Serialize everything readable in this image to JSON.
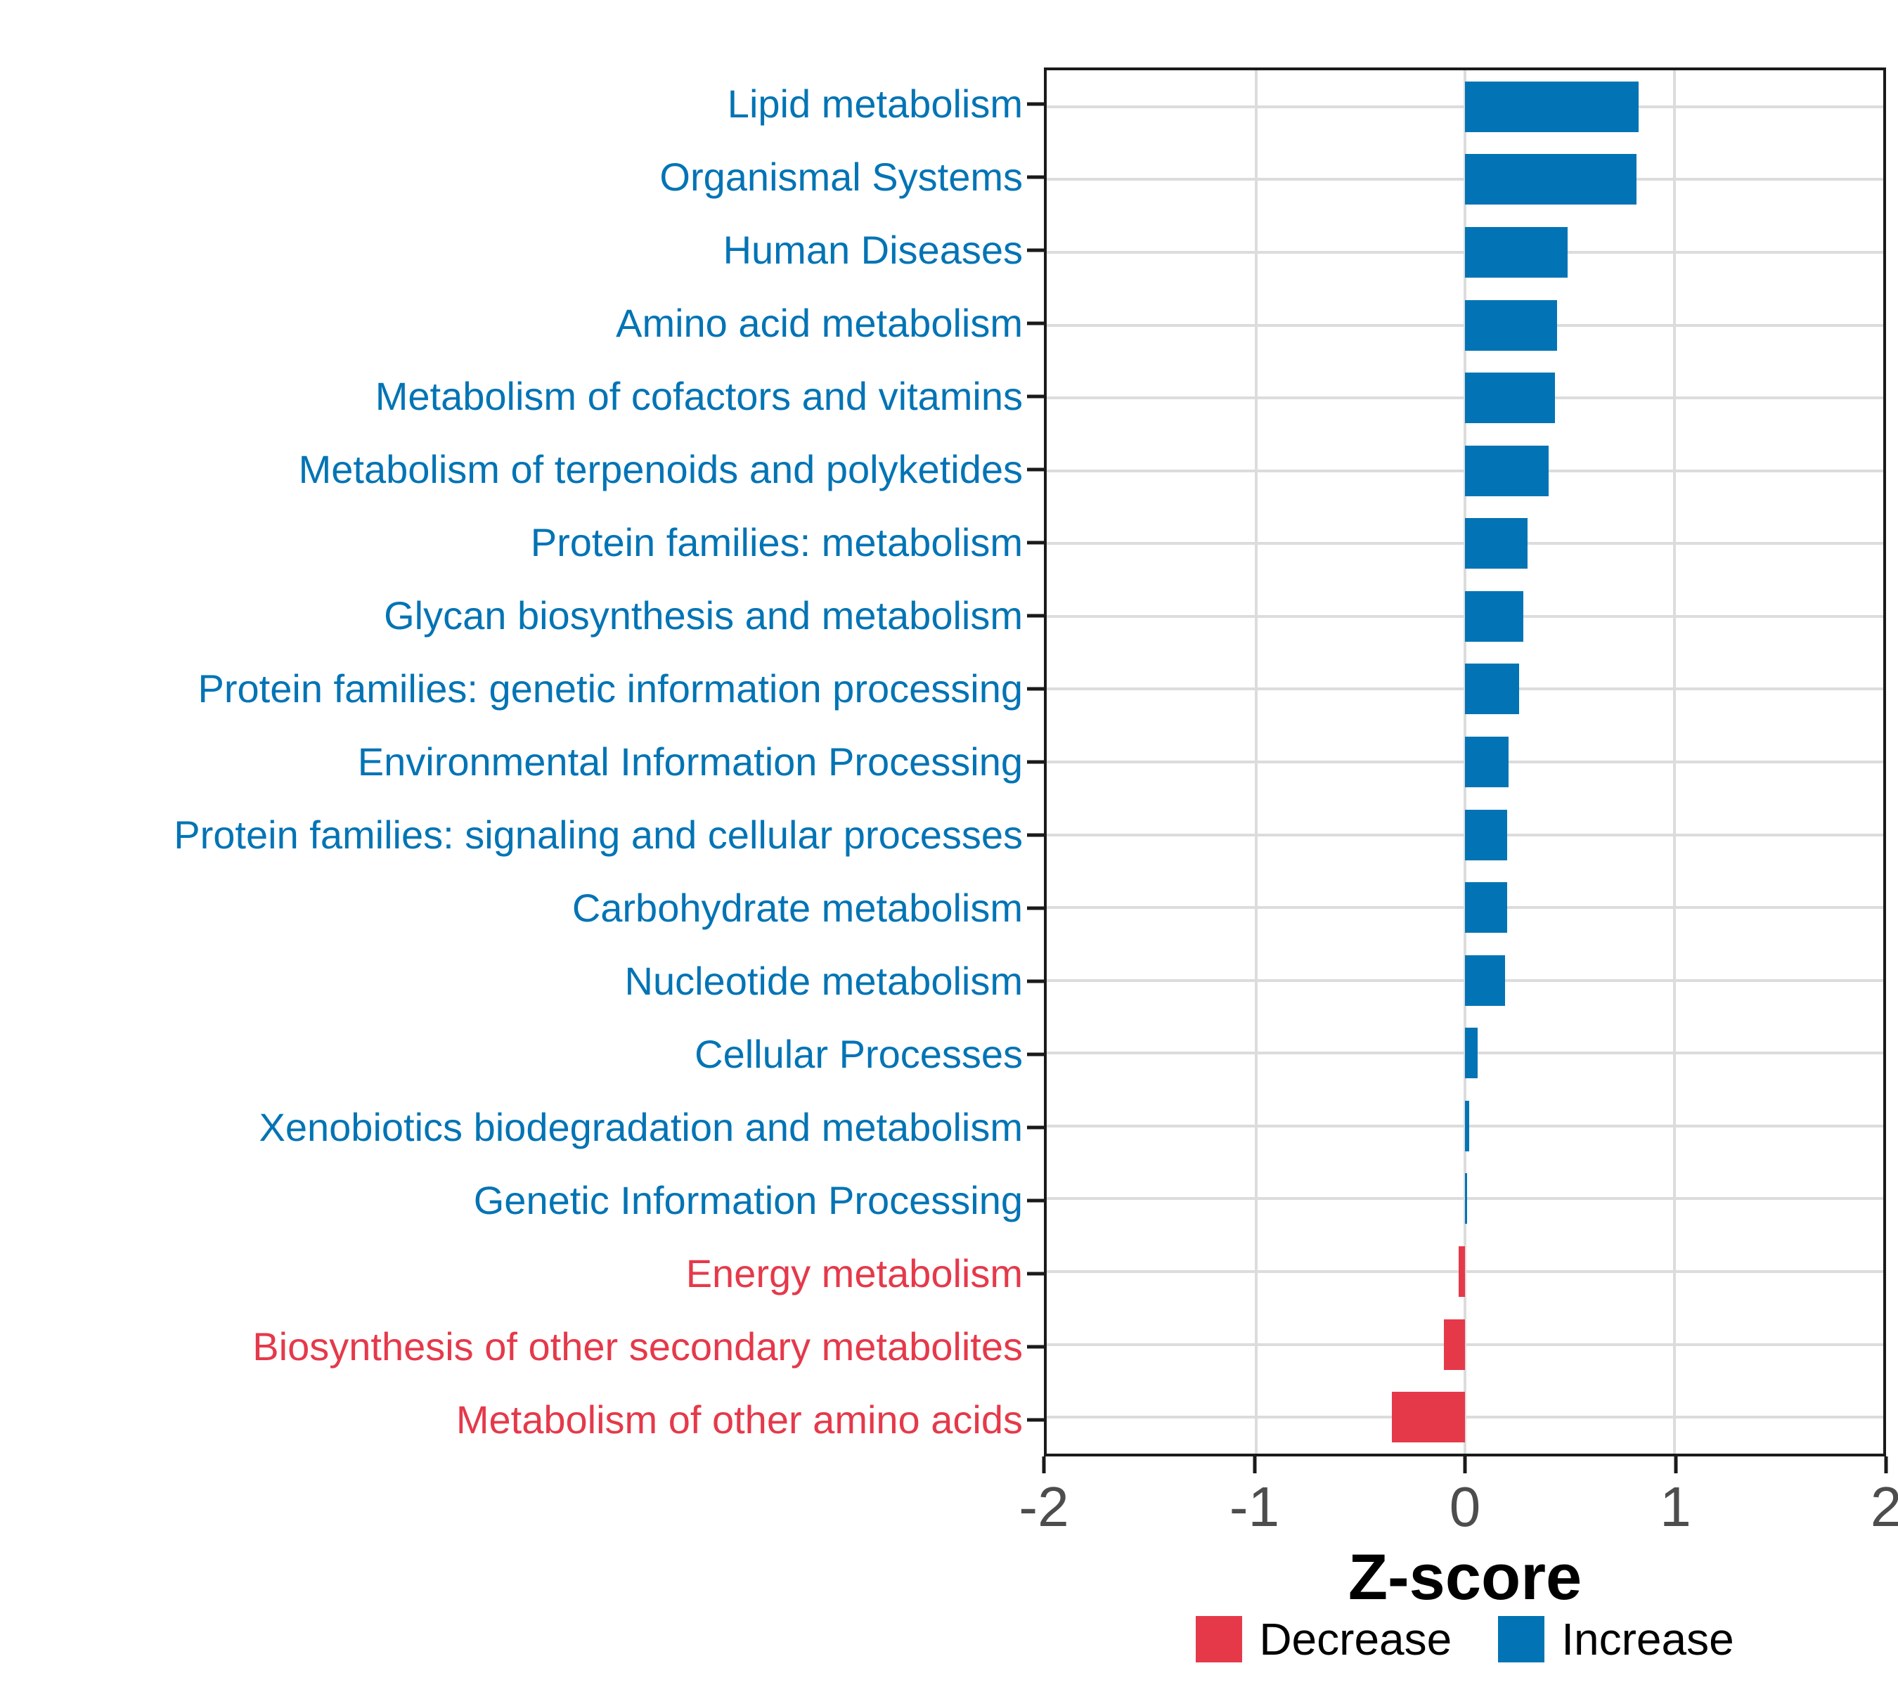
{
  "figure": {
    "background": "#ffffff",
    "panel_border_color": "#1a1a1a",
    "gridline_color": "#dcdcdc",
    "tick_color": "#1a1a1a",
    "axis_text_color": "#4d4d4d"
  },
  "chart_data": {
    "type": "bar",
    "orientation": "horizontal",
    "xlabel": "Z-score",
    "xlim": [
      -2,
      2
    ],
    "x_ticks": [
      -2,
      -1,
      0,
      1,
      2
    ],
    "x_tick_labels": [
      "-2",
      "-1",
      "0",
      "1",
      "2"
    ],
    "grid": "major-only",
    "categories": [
      "Lipid metabolism",
      "Organismal Systems",
      "Human Diseases",
      "Amino acid metabolism",
      "Metabolism of cofactors and vitamins",
      "Metabolism of terpenoids and polyketides",
      "Protein families: metabolism",
      "Glycan biosynthesis and metabolism",
      "Protein families: genetic information processing",
      "Environmental Information Processing",
      "Protein families: signaling and cellular processes",
      "Carbohydrate metabolism",
      "Nucleotide metabolism",
      "Cellular Processes",
      "Xenobiotics biodegradation and metabolism",
      "Genetic Information Processing",
      "Energy metabolism",
      "Biosynthesis of other secondary metabolites",
      "Metabolism of other amino acids"
    ],
    "values": [
      0.83,
      0.82,
      0.49,
      0.44,
      0.43,
      0.4,
      0.3,
      0.28,
      0.26,
      0.21,
      0.2,
      0.2,
      0.19,
      0.06,
      0.02,
      0.01,
      -0.03,
      -0.1,
      -0.35
    ],
    "directions": [
      "Increase",
      "Increase",
      "Increase",
      "Increase",
      "Increase",
      "Increase",
      "Increase",
      "Increase",
      "Increase",
      "Increase",
      "Increase",
      "Increase",
      "Increase",
      "Increase",
      "Increase",
      "Increase",
      "Decrease",
      "Decrease",
      "Decrease"
    ],
    "colors": {
      "Increase": "#0274b5",
      "Decrease": "#e5394a"
    },
    "legend": {
      "position": "bottom",
      "entries": [
        {
          "label": "Decrease",
          "color": "#e5394a"
        },
        {
          "label": "Increase",
          "color": "#0274b5"
        }
      ]
    }
  }
}
